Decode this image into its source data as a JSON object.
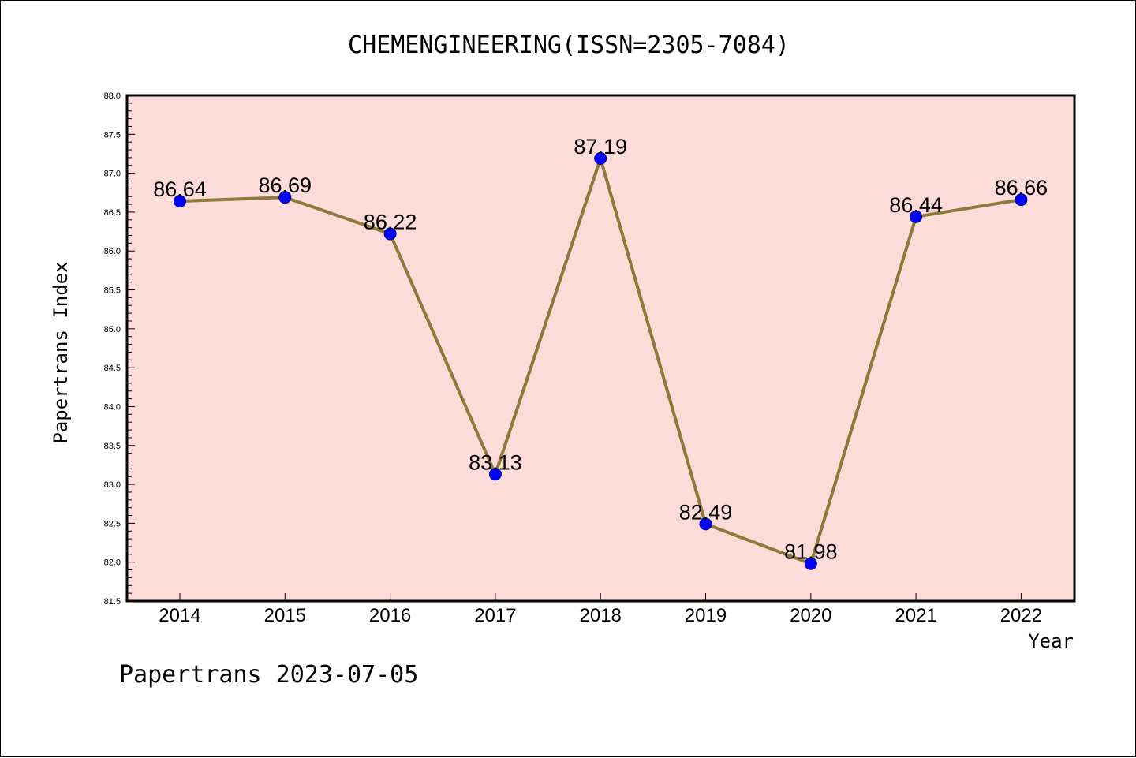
{
  "chart_data": {
    "type": "line",
    "title": "CHEMENGINEERING(ISSN=2305-7084)",
    "xlabel": "Year",
    "ylabel": "Papertrans Index",
    "categories": [
      "2014",
      "2015",
      "2016",
      "2017",
      "2018",
      "2019",
      "2020",
      "2021",
      "2022"
    ],
    "series": [
      {
        "values": [
          86.64,
          86.69,
          86.22,
          83.13,
          87.19,
          82.49,
          81.98,
          86.44,
          86.66
        ]
      }
    ],
    "value_labels": [
      "86.64",
      "86.69",
      "86.22",
      "83.13",
      "87.19",
      "82.49",
      "81.98",
      "86.44",
      "86.66"
    ],
    "ylim": [
      81.5,
      88.0
    ],
    "yticks": [
      "81.5",
      "82.0",
      "82.5",
      "83.0",
      "83.5",
      "84.0",
      "84.5",
      "85.0",
      "85.5",
      "86.0",
      "86.5",
      "87.0",
      "87.5",
      "88.0"
    ],
    "grid": false,
    "colors": {
      "plot_background": "#fddbd8",
      "line": "#8b7a3a",
      "marker": "#0000ff"
    }
  },
  "footer": "Papertrans 2023-07-05"
}
